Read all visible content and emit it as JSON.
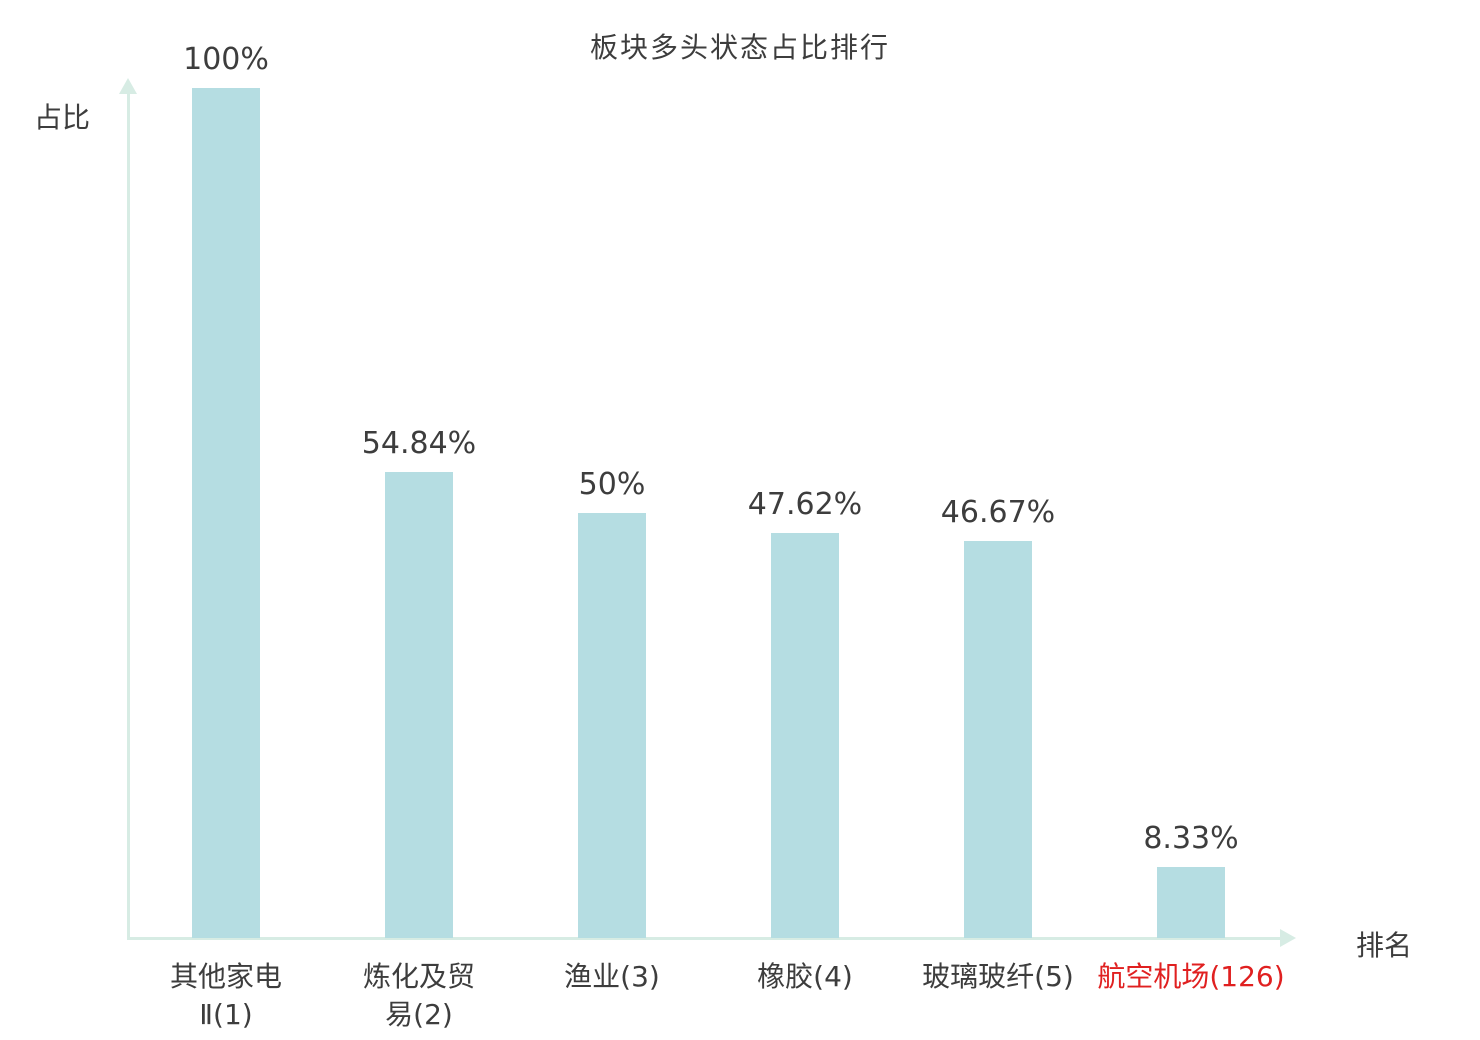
{
  "chart_data": {
    "type": "bar",
    "title": "板块多头状态占比排行",
    "ylabel": "占比",
    "xlabel": "排名",
    "categories": [
      "其他家电\nⅡ(1)",
      "炼化及贸\n易(2)",
      "渔业(3)",
      "橡胶(4)",
      "玻璃玻纤(5)",
      "航空机场(126)"
    ],
    "values": [
      100,
      54.84,
      50,
      47.62,
      46.67,
      8.33
    ],
    "value_labels": [
      "100%",
      "54.84%",
      "50%",
      "47.62%",
      "46.67%",
      "8.33%"
    ],
    "ylim": [
      0,
      100
    ],
    "grid": false,
    "legend": false,
    "bar_color": "#b5dde2",
    "axis_color": "#d7ece4",
    "text_color": "#3d3d3d",
    "highlight_category_index": 5,
    "highlight_color": "#e02020"
  }
}
